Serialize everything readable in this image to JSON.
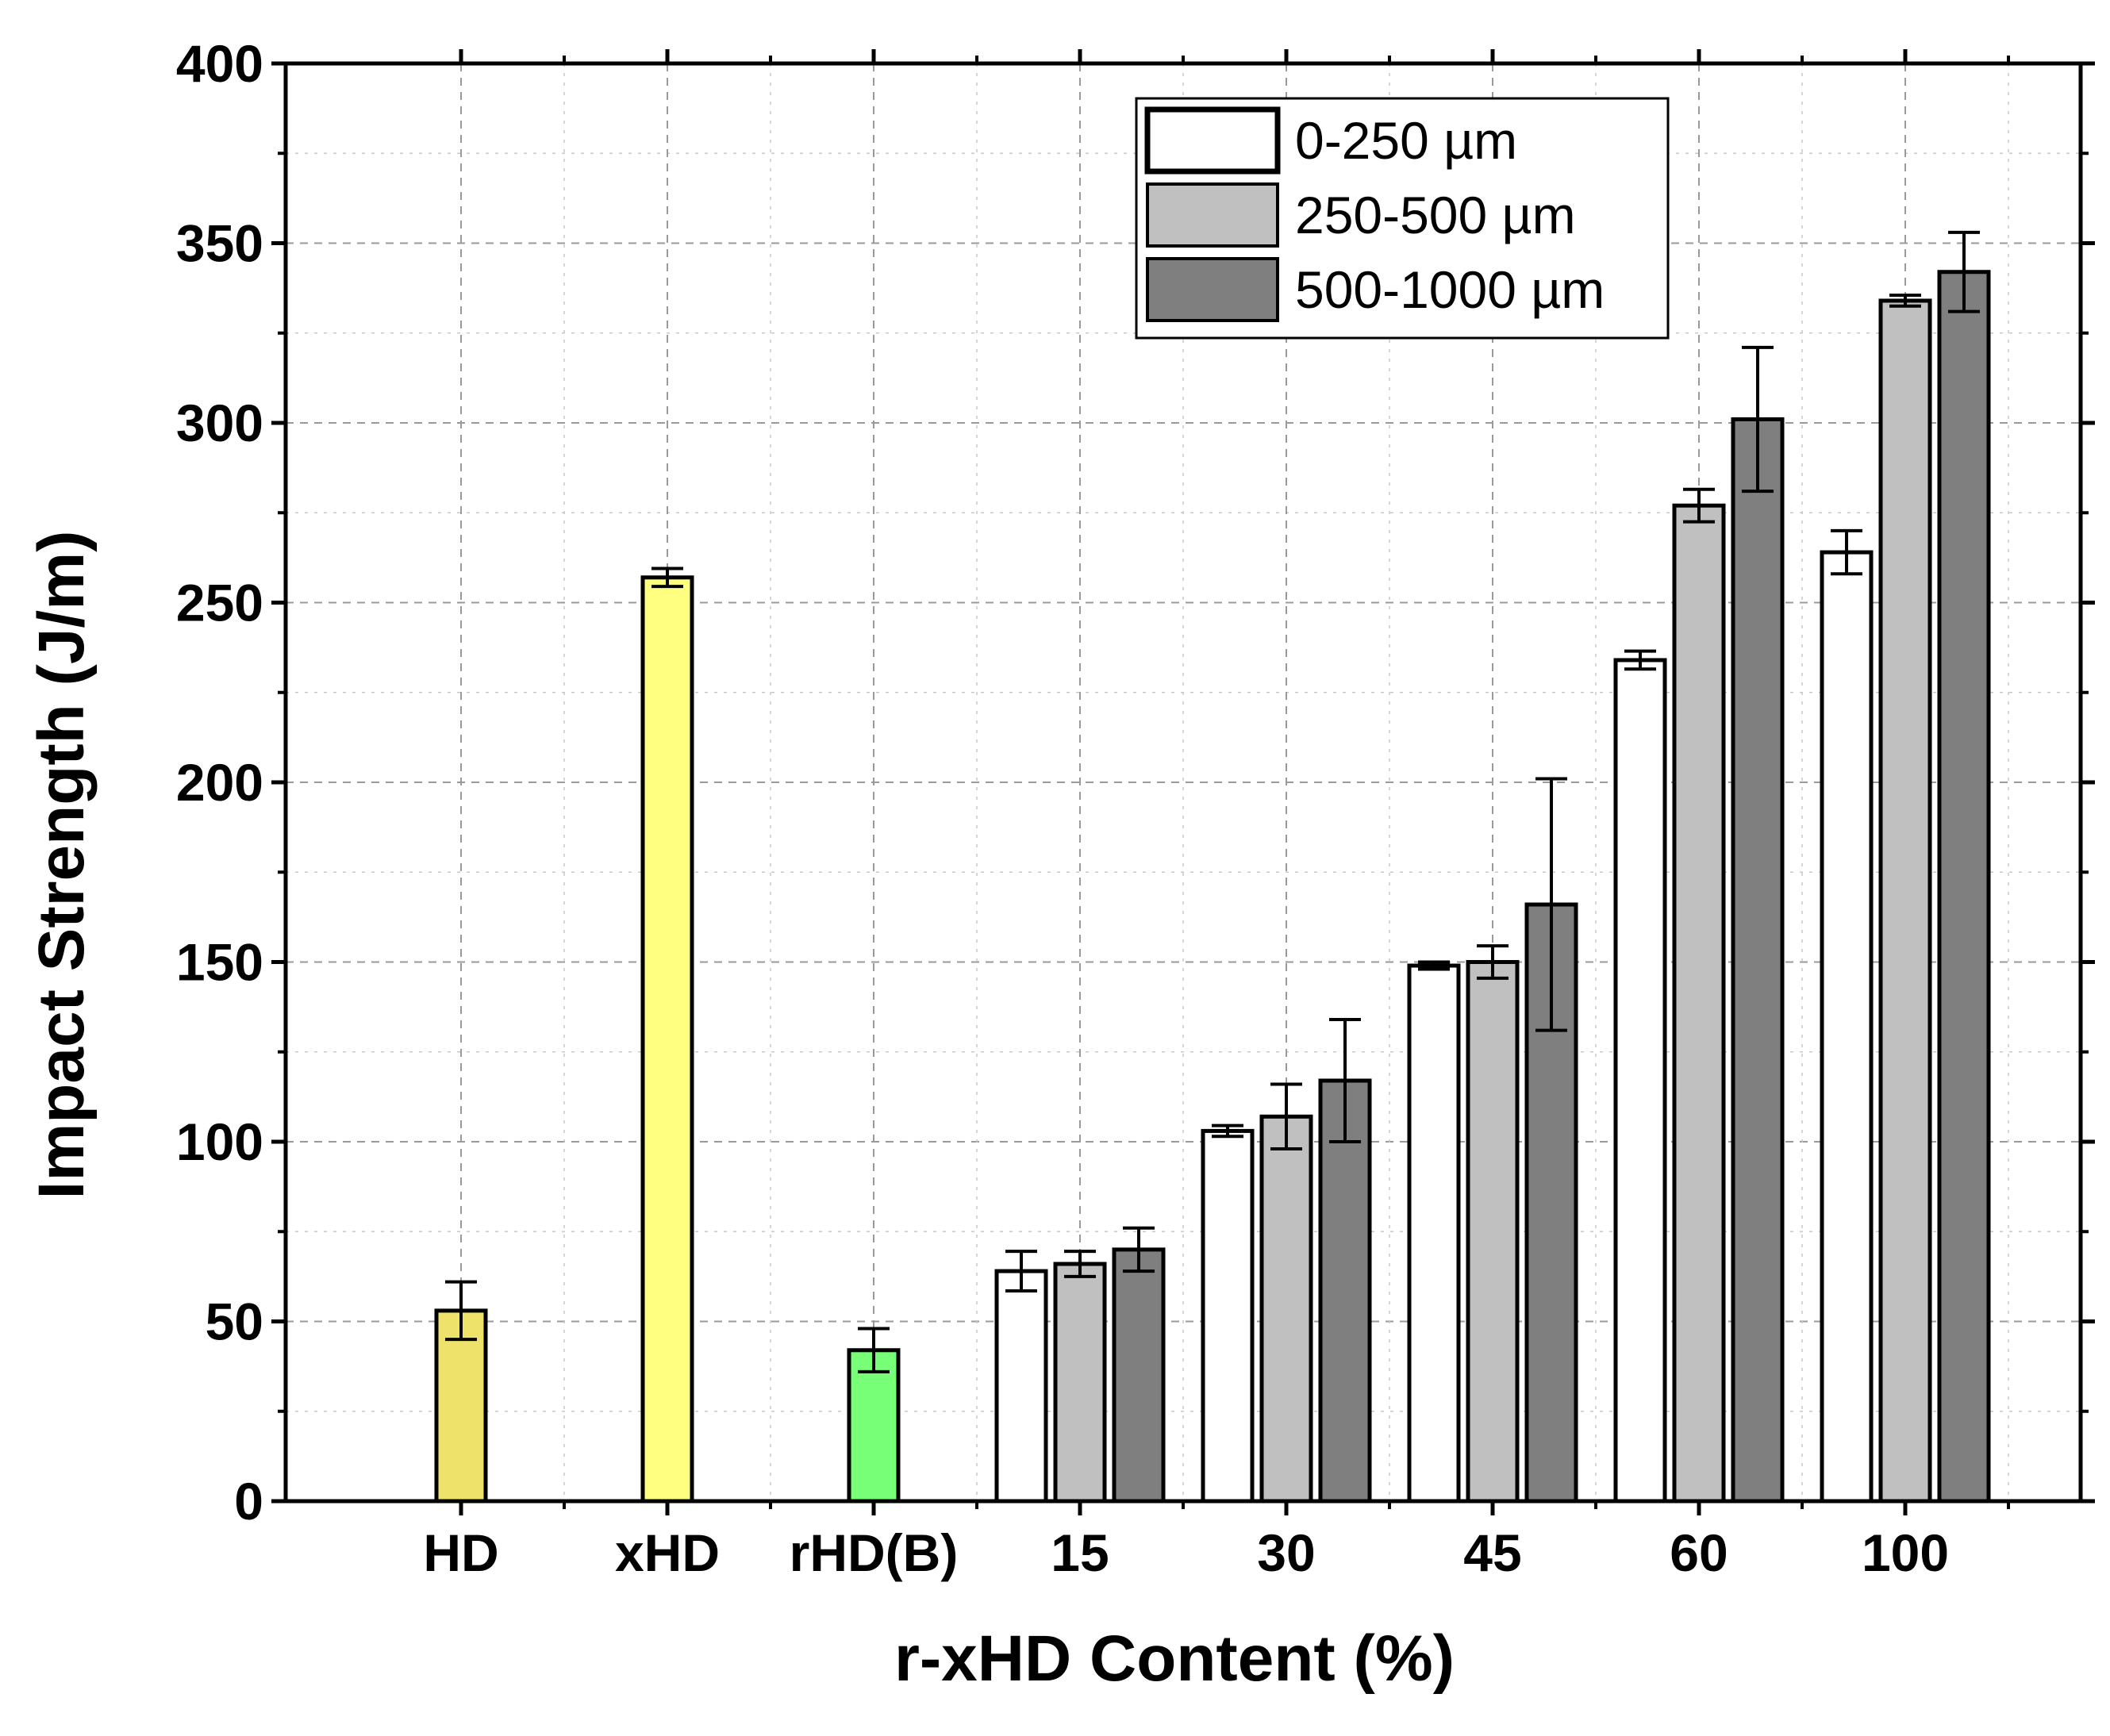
{
  "chart_data": {
    "type": "bar",
    "xlabel": "r-xHD Content (%)",
    "ylabel": "Impact Strength (J/m)",
    "ylim": [
      0,
      400
    ],
    "yticks": [
      0,
      50,
      100,
      150,
      200,
      250,
      300,
      350,
      400
    ],
    "grid": true,
    "legend_position": "top-right",
    "references": [
      {
        "category": "HD",
        "value": 53,
        "error": 8,
        "color": "#efe26a"
      },
      {
        "category": "xHD",
        "value": 257,
        "error": 2.5,
        "color": "#ffff80"
      },
      {
        "category": "rHD(B)",
        "value": 42,
        "error": 6,
        "color": "#78ff78"
      }
    ],
    "categories": [
      "15",
      "30",
      "45",
      "60",
      "100"
    ],
    "series": [
      {
        "name": "0-250 µm",
        "color": "#ffffff",
        "values": [
          64,
          103,
          149,
          234,
          264
        ],
        "errors": [
          5.5,
          1.5,
          1,
          2.5,
          6
        ]
      },
      {
        "name": "250-500 µm",
        "color": "#c0c0c0",
        "values": [
          66,
          107,
          150,
          277,
          334
        ],
        "errors": [
          3.5,
          9,
          4.5,
          4.5,
          1.5
        ]
      },
      {
        "name": "500-1000 µm",
        "color": "#7f7f7f",
        "values": [
          70,
          117,
          166,
          301,
          342
        ],
        "errors": [
          6,
          17,
          35,
          20,
          11
        ]
      }
    ]
  }
}
